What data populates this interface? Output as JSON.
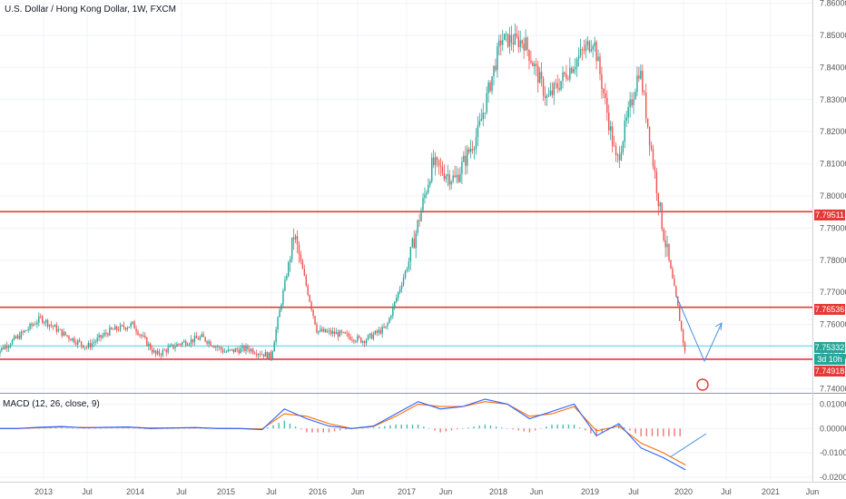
{
  "header": {
    "title": "U.S. Dollar / Hong Kong Dollar, 1W, FXCM"
  },
  "macd": {
    "title": "MACD (12, 26, close, 9)"
  },
  "tags": {
    "resistance_upper": "7.79511",
    "resistance_mid": "7.76536",
    "current": "7.75332",
    "countdown": "3d 10h",
    "support": "7.74918"
  },
  "colors": {
    "bull": "#26a69a",
    "bear": "#ef5350",
    "level_line": "#e53935",
    "current_line": "#4dd0e1",
    "macd_line": "#2962ff",
    "signal_line": "#ff6d00"
  },
  "chart_data": [
    {
      "type": "candlestick",
      "title": "U.S. Dollar / Hong Kong Dollar, 1W, FXCM",
      "y_ticks": [
        "7.86000",
        "7.85000",
        "7.84000",
        "7.83000",
        "7.82000",
        "7.81000",
        "7.80000",
        "7.79000",
        "7.78000",
        "7.77000",
        "7.76000",
        "7.75000",
        "7.74000"
      ],
      "ylim": [
        7.739,
        7.861
      ],
      "x_ticks": [
        "2013",
        "Jul",
        "2014",
        "Jul",
        "2015",
        "Jul",
        "2016",
        "Jun",
        "2017",
        "Jun",
        "2018",
        "Jun",
        "2019",
        "Jul",
        "2020",
        "Jul",
        "2021",
        "Jun"
      ],
      "horizontal_levels": [
        7.79511,
        7.76536,
        7.74918
      ],
      "current_price": 7.75332,
      "series": [
        {
          "values_approx": [
            {
              "t": "2012-10",
              "v": 7.751
            },
            {
              "t": "2013-01",
              "v": 7.756
            },
            {
              "t": "2013-04",
              "v": 7.762
            },
            {
              "t": "2013-07",
              "v": 7.757
            },
            {
              "t": "2013-10",
              "v": 7.753
            },
            {
              "t": "2014-01",
              "v": 7.758
            },
            {
              "t": "2014-04",
              "v": 7.76
            },
            {
              "t": "2014-07",
              "v": 7.7505
            },
            {
              "t": "2014-10",
              "v": 7.754
            },
            {
              "t": "2015-01",
              "v": 7.756
            },
            {
              "t": "2015-04",
              "v": 7.7515
            },
            {
              "t": "2015-07",
              "v": 7.7525
            },
            {
              "t": "2015-10",
              "v": 7.75
            },
            {
              "t": "2016-01",
              "v": 7.788
            },
            {
              "t": "2016-04",
              "v": 7.758
            },
            {
              "t": "2016-07",
              "v": 7.757
            },
            {
              "t": "2016-10",
              "v": 7.755
            },
            {
              "t": "2017-01",
              "v": 7.759
            },
            {
              "t": "2017-04",
              "v": 7.78
            },
            {
              "t": "2017-07",
              "v": 7.81
            },
            {
              "t": "2017-10",
              "v": 7.805
            },
            {
              "t": "2018-01",
              "v": 7.82
            },
            {
              "t": "2018-04",
              "v": 7.849
            },
            {
              "t": "2018-07",
              "v": 7.848
            },
            {
              "t": "2018-10",
              "v": 7.83
            },
            {
              "t": "2019-01",
              "v": 7.84
            },
            {
              "t": "2019-04",
              "v": 7.849
            },
            {
              "t": "2019-07",
              "v": 7.81
            },
            {
              "t": "2019-10",
              "v": 7.84
            },
            {
              "t": "2020-01",
              "v": 7.79
            },
            {
              "t": "2020-03",
              "v": 7.765
            },
            {
              "t": "2020-04",
              "v": 7.75
            }
          ]
        }
      ]
    },
    {
      "type": "line",
      "title": "MACD (12, 26, close, 9)",
      "y_ticks": [
        "0.01000",
        "0.00000",
        "-0.01000",
        "-0.02000"
      ],
      "ylim": [
        -0.0215,
        0.0135
      ],
      "series": [
        {
          "name": "MACD",
          "values_approx": [
            0,
            0,
            0.0005,
            0.0008,
            0.0003,
            0.0005,
            0.0006,
            0,
            0.0002,
            0.0004,
            0,
            0,
            -0.0005,
            0.008,
            0.004,
            0.001,
            0,
            0.001,
            0.006,
            0.011,
            0.008,
            0.009,
            0.012,
            0.01,
            0.004,
            0.007,
            0.01,
            -0.003,
            0.002,
            -0.008,
            -0.012,
            -0.017
          ]
        },
        {
          "name": "Signal",
          "values_approx": [
            0,
            0,
            0.0003,
            0.0006,
            0.0004,
            0.0004,
            0.0005,
            0.0002,
            0.0002,
            0.0003,
            0.0001,
            0,
            -0.0002,
            0.006,
            0.005,
            0.002,
            0,
            0.0008,
            0.005,
            0.01,
            0.009,
            0.009,
            0.011,
            0.01,
            0.005,
            0.006,
            0.009,
            -0.001,
            0.001,
            -0.006,
            -0.01,
            -0.015
          ]
        }
      ]
    }
  ]
}
